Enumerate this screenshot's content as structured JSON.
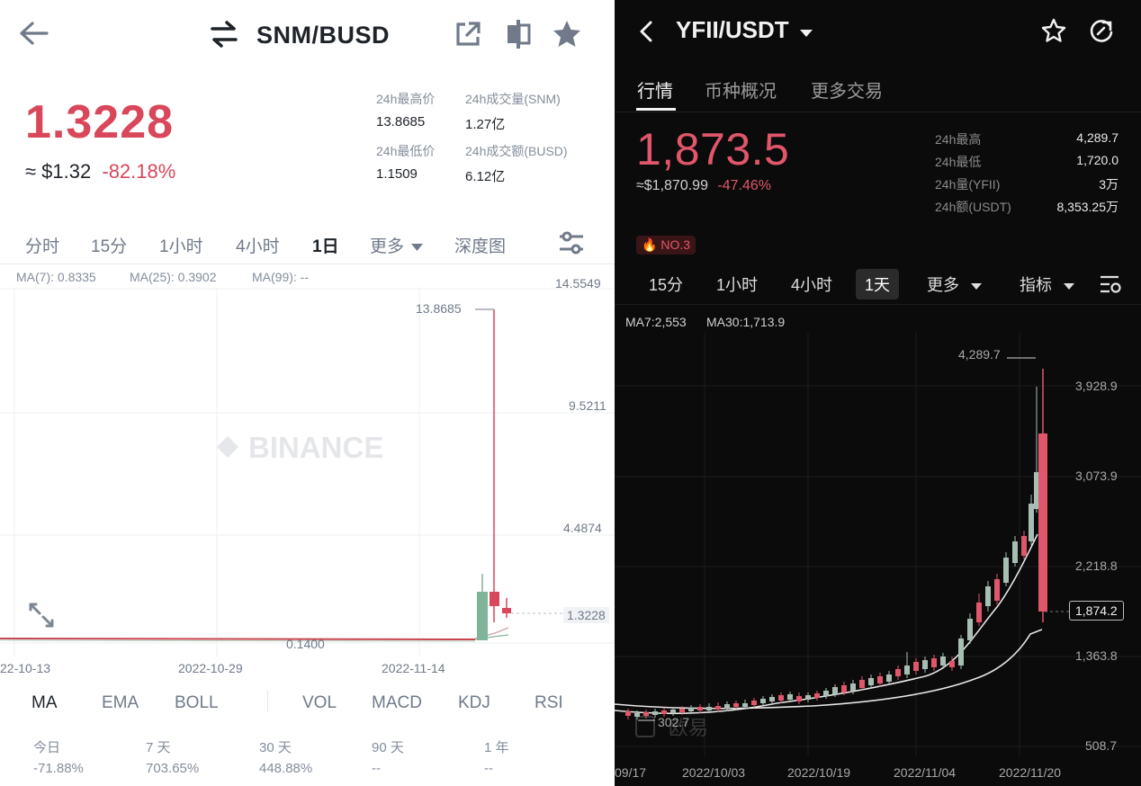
{
  "left": {
    "header": {
      "pair": "SNM/BUSD"
    },
    "price": "1.3228",
    "fiat_price": "≈ $1.32",
    "change": "-82.18%",
    "stats": {
      "high_label": "24h最高价",
      "high_value": "13.8685",
      "vol_label": "24h成交量(SNM)",
      "vol_value": "1.27亿",
      "low_label": "24h最低价",
      "low_value": "1.1509",
      "amount_label": "24h成交额(BUSD)",
      "amount_value": "6.12亿"
    },
    "intervals": [
      "分时",
      "15分",
      "1小时",
      "4小时",
      "1日",
      "更多",
      "深度图"
    ],
    "active_interval": "1日",
    "ma_legend": {
      "ma7": "MA(7): 0.8335",
      "ma25": "MA(25): 0.3902",
      "ma99": "MA(99): --"
    },
    "watermark": "BINANCE",
    "price_axis": [
      "14.5549",
      "9.5211",
      "4.4874",
      "1.3228"
    ],
    "high_marker": "13.8685",
    "low_marker": "0.1400",
    "date_axis": [
      "22-10-13",
      "2022-10-29",
      "2022-11-14"
    ],
    "indicators": [
      "MA",
      "EMA",
      "BOLL",
      "VOL",
      "MACD",
      "KDJ",
      "RSI"
    ],
    "perf": [
      {
        "label": "今日",
        "value": "-71.88%"
      },
      {
        "label": "7 天",
        "value": "703.65%"
      },
      {
        "label": "30 天",
        "value": "448.88%"
      },
      {
        "label": "90 天",
        "value": "--"
      },
      {
        "label": "1 年",
        "value": "--"
      }
    ],
    "colors": {
      "down": "#d9475a",
      "up": "#7fb39a",
      "text": "#1e2329"
    }
  },
  "right": {
    "header": {
      "pair": "YFII/USDT"
    },
    "tabs": [
      "行情",
      "币种概况",
      "更多交易"
    ],
    "price": "1,873.5",
    "fiat_price": "≈$1,870.99",
    "change": "-47.46%",
    "stats": [
      {
        "label": "24h最高",
        "value": "4,289.7"
      },
      {
        "label": "24h最低",
        "value": "1,720.0"
      },
      {
        "label": "24h量(YFII)",
        "value": "3万"
      },
      {
        "label": "24h额(USDT)",
        "value": "8,353.25万"
      }
    ],
    "rank_badge": "NO.3",
    "intervals": [
      "15分",
      "1小时",
      "4小时",
      "1天",
      "更多"
    ],
    "active_interval": "1天",
    "indicator_label": "指标",
    "ma_legend": {
      "ma7": "MA7:2,553",
      "ma30": "MA30:1,713.9"
    },
    "price_axis": [
      "3,928.9",
      "3,073.9",
      "2,218.8",
      "1,363.8",
      "508.7"
    ],
    "current_price_tag": "1,874.2",
    "high_marker": "4,289.7",
    "low_marker": "302.7",
    "watermark": "欧易",
    "date_axis": [
      "09/17",
      "2022/10/03",
      "2022/10/19",
      "2022/11/04",
      "2022/11/20"
    ],
    "colors": {
      "down": "#e0566a",
      "up": "#a7bfb2"
    }
  }
}
